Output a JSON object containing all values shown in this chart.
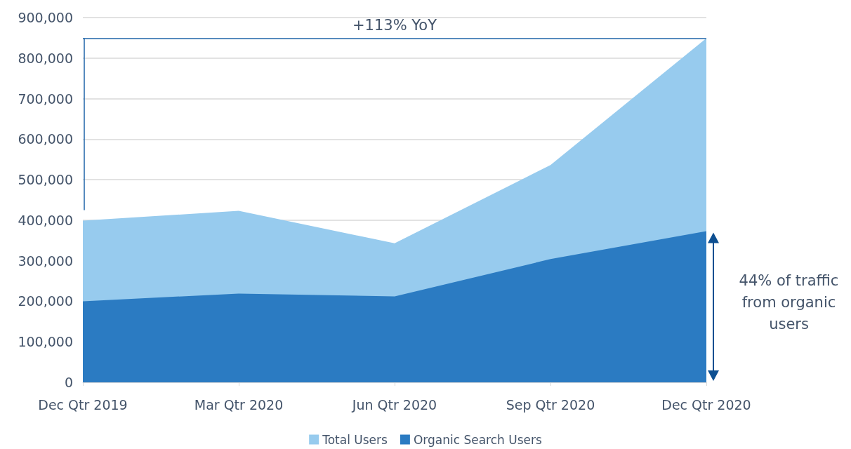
{
  "chart_data": {
    "type": "area",
    "categories": [
      "Dec Qtr 2019",
      "Mar Qtr 2020",
      "Jun Qtr 2020",
      "Sep Qtr 2020",
      "Dec Qtr 2020"
    ],
    "series": [
      {
        "name": "Total Users",
        "color": "#97cbee",
        "values": [
          399000,
          423000,
          343000,
          536000,
          849000
        ]
      },
      {
        "name": "Organic Search Users",
        "color": "#2b7bc2",
        "values": [
          200000,
          219000,
          212000,
          304000,
          373000
        ]
      }
    ],
    "ylim": [
      0,
      900000
    ],
    "yticks": [
      0,
      {
        "value": 100000,
        "label": "100,000"
      },
      {
        "value": 200000,
        "label": "200,000"
      },
      {
        "value": 300000,
        "label": "300,000"
      },
      {
        "value": 400000,
        "label": "400,000"
      },
      {
        "value": 500000,
        "label": "500,000"
      },
      {
        "value": 600000,
        "label": "600,000"
      },
      {
        "value": 700000,
        "label": "700,000"
      },
      {
        "value": 800000,
        "label": "800,000"
      },
      {
        "value": 900000,
        "label": "900,000"
      }
    ],
    "grid": "y",
    "legend": "bottom",
    "marker": "none",
    "ref_lines": [
      {
        "axis": "y",
        "value": 849000,
        "label": "+113% YoY",
        "color": "#1f64a8",
        "line_style": "solid"
      }
    ],
    "annotations": [
      "44% of traffic from organic users"
    ]
  }
}
